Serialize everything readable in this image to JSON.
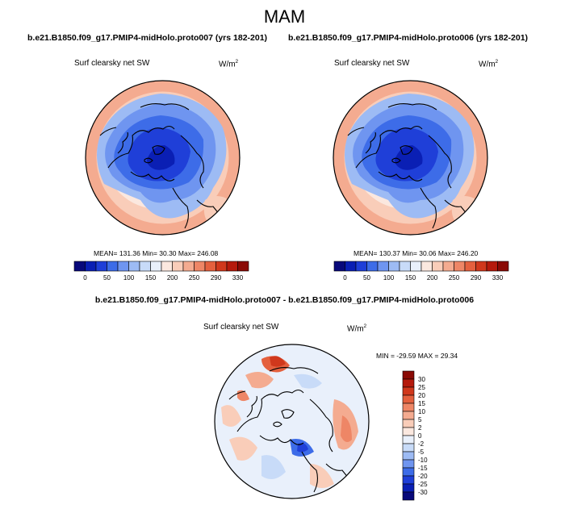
{
  "title": "MAM",
  "panels": [
    {
      "case": "b.e21.B1850.f09_g17.PMIP4-midHolo.proto007 (yrs 182-201)",
      "variable": "Surf clearsky net SW",
      "units_base": "W/m",
      "units_exp": "2",
      "stats": "MEAN= 131.36  Min=  30.30  Max= 246.08"
    },
    {
      "case": "b.e21.B1850.f09_g17.PMIP4-midHolo.proto006 (yrs 182-201)",
      "variable": "Surf clearsky net SW",
      "units_base": "W/m",
      "units_exp": "2",
      "stats": "MEAN= 130.37  Min=  30.06  Max= 246.20"
    },
    {
      "case": "b.e21.B1850.f09_g17.PMIP4-midHolo.proto007 - b.e21.B1850.f09_g17.PMIP4-midHolo.proto006",
      "variable": "Surf clearsky net SW",
      "units_base": "W/m",
      "units_exp": "2",
      "stats": "MIN = -29.59 MAX =  29.34"
    }
  ],
  "chart_data": [
    {
      "type": "heatmap",
      "projection": "north polar stereographic",
      "title": "Surf clearsky net SW",
      "units": "W/m2",
      "stats": {
        "mean": 131.36,
        "min": 30.3,
        "max": 246.08
      },
      "colorbar": {
        "orientation": "horizontal",
        "levels": [
          0,
          50,
          100,
          150,
          200,
          250,
          290,
          330
        ],
        "colors": [
          "#08097a",
          "#0a1fb4",
          "#1f3fd8",
          "#3d6ce8",
          "#6f95f0",
          "#9dbbf4",
          "#c8dbf8",
          "#e9f0fb",
          "#fbe8df",
          "#f9cdb9",
          "#f4ab90",
          "#ee8666",
          "#e4603e",
          "#d0381c",
          "#b51a0c",
          "#8a0a05"
        ]
      }
    },
    {
      "type": "heatmap",
      "projection": "north polar stereographic",
      "title": "Surf clearsky net SW",
      "units": "W/m2",
      "stats": {
        "mean": 130.37,
        "min": 30.06,
        "max": 246.2
      },
      "colorbar": {
        "orientation": "horizontal",
        "levels": [
          0,
          50,
          100,
          150,
          200,
          250,
          290,
          330
        ],
        "colors": [
          "#08097a",
          "#0a1fb4",
          "#1f3fd8",
          "#3d6ce8",
          "#6f95f0",
          "#9dbbf4",
          "#c8dbf8",
          "#e9f0fb",
          "#fbe8df",
          "#f9cdb9",
          "#f4ab90",
          "#ee8666",
          "#e4603e",
          "#d0381c",
          "#b51a0c",
          "#8a0a05"
        ]
      }
    },
    {
      "type": "heatmap",
      "projection": "north polar stereographic",
      "title": "Surf clearsky net SW",
      "units": "W/m2",
      "stats": {
        "min": -29.59,
        "max": 29.34
      },
      "colorbar": {
        "orientation": "vertical",
        "levels": [
          30,
          25,
          20,
          15,
          10,
          5,
          2,
          0,
          -2,
          -5,
          -10,
          -15,
          -20,
          -25,
          -30
        ],
        "colors": [
          "#8a0a05",
          "#b51a0c",
          "#d0381c",
          "#e4603e",
          "#ee8666",
          "#f4ab90",
          "#f9cdb9",
          "#fbe8df",
          "#e9f0fb",
          "#c8dbf8",
          "#9dbbf4",
          "#6f95f0",
          "#3d6ce8",
          "#1f3fd8",
          "#0a1fb4",
          "#08097a"
        ]
      }
    }
  ]
}
